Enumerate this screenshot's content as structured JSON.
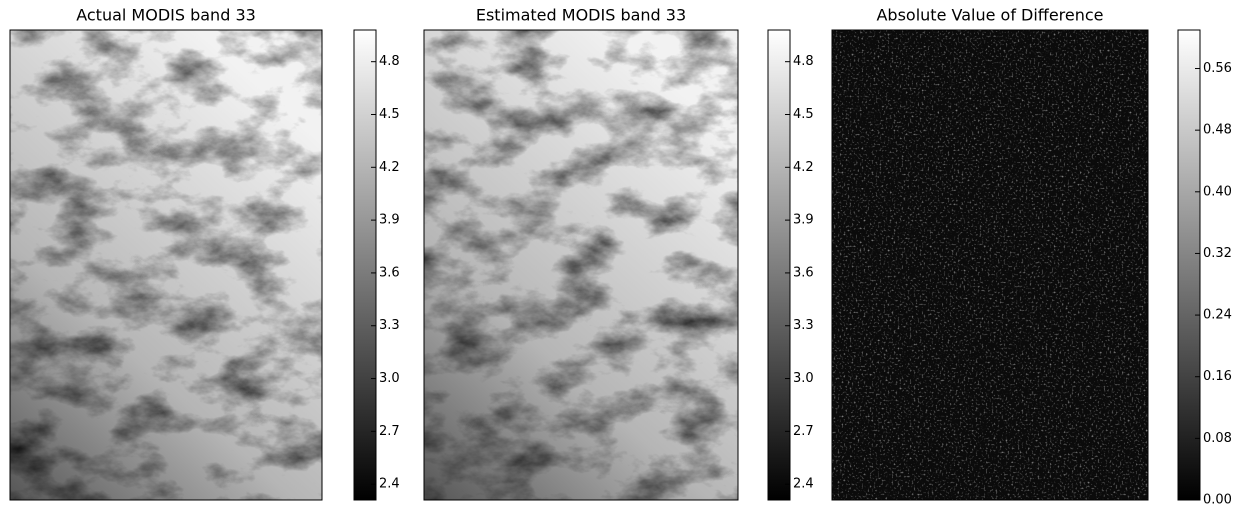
{
  "chart_data": [
    {
      "type": "image",
      "title": "Actual MODIS band 33",
      "colorbar": {
        "ylim": [
          2.31,
          4.98
        ],
        "yticks": [
          {
            "value": 2.4,
            "label": "2.4"
          },
          2.7,
          {
            "value": 3.0,
            "label": "3.0"
          },
          3.3,
          3.6,
          3.9,
          4.2,
          4.5,
          4.8
        ]
      }
    },
    {
      "type": "image",
      "title": "Estimated MODIS band 33",
      "colorbar": {
        "ylim": [
          2.31,
          4.98
        ],
        "yticks": [
          {
            "value": 2.4,
            "label": "2.4"
          },
          2.7,
          {
            "value": 3.0,
            "label": "3.0"
          },
          3.3,
          3.6,
          3.9,
          4.2,
          4.5,
          4.8
        ]
      }
    },
    {
      "type": "image",
      "title": "Absolute Value of Difference",
      "colorbar": {
        "ylim": [
          0,
          0.61
        ],
        "yticks": [
          {
            "value": 0,
            "label": "0.00"
          },
          0.08,
          {
            "value": 0.16,
            "label": "0.16"
          },
          {
            "value": 0.24,
            "label": "0.24"
          },
          {
            "value": 0.32,
            "label": "0.32"
          },
          {
            "value": 0.4,
            "label": "0.40"
          },
          {
            "value": 0.48,
            "label": "0.48"
          },
          {
            "value": 0.56,
            "label": "0.56"
          }
        ]
      }
    }
  ]
}
